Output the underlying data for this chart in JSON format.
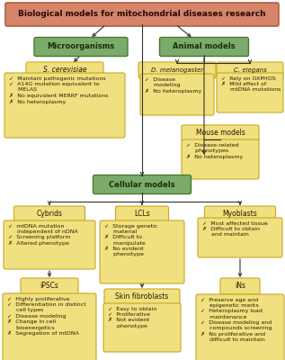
{
  "title_bg": "#D4856A",
  "title_border": "#B06040",
  "green_bg": "#7AAB6A",
  "green_border": "#4A7A30",
  "yellow_bg": "#F0E080",
  "yellow_border": "#C8A820",
  "arrow_color": "#333333",
  "title_text": "Biological models for mitochondrial diseases research",
  "microorg_text": "Microorganisms",
  "animal_text": "Animal models",
  "cellular_text": "Cellular models",
  "sc_label": "S. cerevisiae",
  "dm_label": "D. melanogaster",
  "ce_label": "C. elegans",
  "mouse_label": "Mouse models",
  "cybrids_label": "Cybrids",
  "lcls_label": "LCLs",
  "myoblasts_label": "Myoblasts",
  "ipscs_label": "iPSCs",
  "skin_label": "Skin fibroblasts",
  "ins_label": "iNs",
  "sc_content": "✓  Maintain pathogenic mutations\n✓  A14G mutation equivalent to\n     MELAS\n✗  No equivalent MERRF mutations\n✗  No heteroplasmy",
  "dm_content": "✓  Disease\n     modeling\n✗  No heteroplasmy",
  "ce_content": "✓  Rely on OXPHOS\n✗  Mild effect of\n     mtDNA mutations",
  "mouse_content": "✓  Disease-related\n     phenotypes\n✗  No heteroplasmy",
  "cybrids_content": "✓  mtDNA mutation\n     independent of nDNA\n✓  Screening platform\n✗  Altered phenotype",
  "lcls_content": "✓  Storage genetic\n     material\n✗  Difficult to\n     manipulate\n✗  No evident\n     phenotype",
  "myoblasts_content": "✓  Most affected tissue\n✗  Difficult to obtain\n     and maintain",
  "ipscs_content": "✓  Highly proliferative\n✓  Differentiation in distinct\n     cell types\n✓  Disease modeling\n✗  Change in cell\n     bioenergetics\n✗  Segregation of mtDNA",
  "skin_content": "✓  Easy to obtain\n✓  Proliferative\n✗  Not evident\n     phenotype",
  "ins_content": "✓  Preserve age and\n     epigenetic marks\n✓  Heteroplasmy load\n     maintenance\n✓  Disease modeling and\n     compounds screening\n✗  No proliferative and\n     difficult to maintain"
}
